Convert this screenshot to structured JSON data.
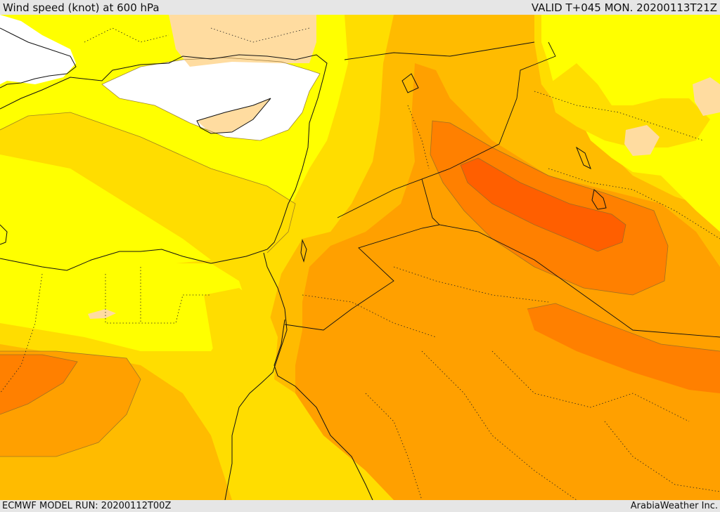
{
  "header": {
    "title": "Wind speed (knot) at 600 hPa",
    "valid": "VALID T+045 MON. 20200113T21Z"
  },
  "footer": {
    "model_run": "ECMWF MODEL RUN: 20200112T00Z",
    "credit": "ArabiaWeather Inc."
  },
  "map": {
    "fill_colors": {
      "lowest": "#ffffff",
      "low": "#ffdca0",
      "level_1": "#ffff00",
      "level_2": "#ffdd00",
      "level_3": "#ffbb00",
      "level_4": "#ffa000",
      "level_5": "#ff8000",
      "level_6": "#ff5f00"
    },
    "line_color": "#222222"
  }
}
